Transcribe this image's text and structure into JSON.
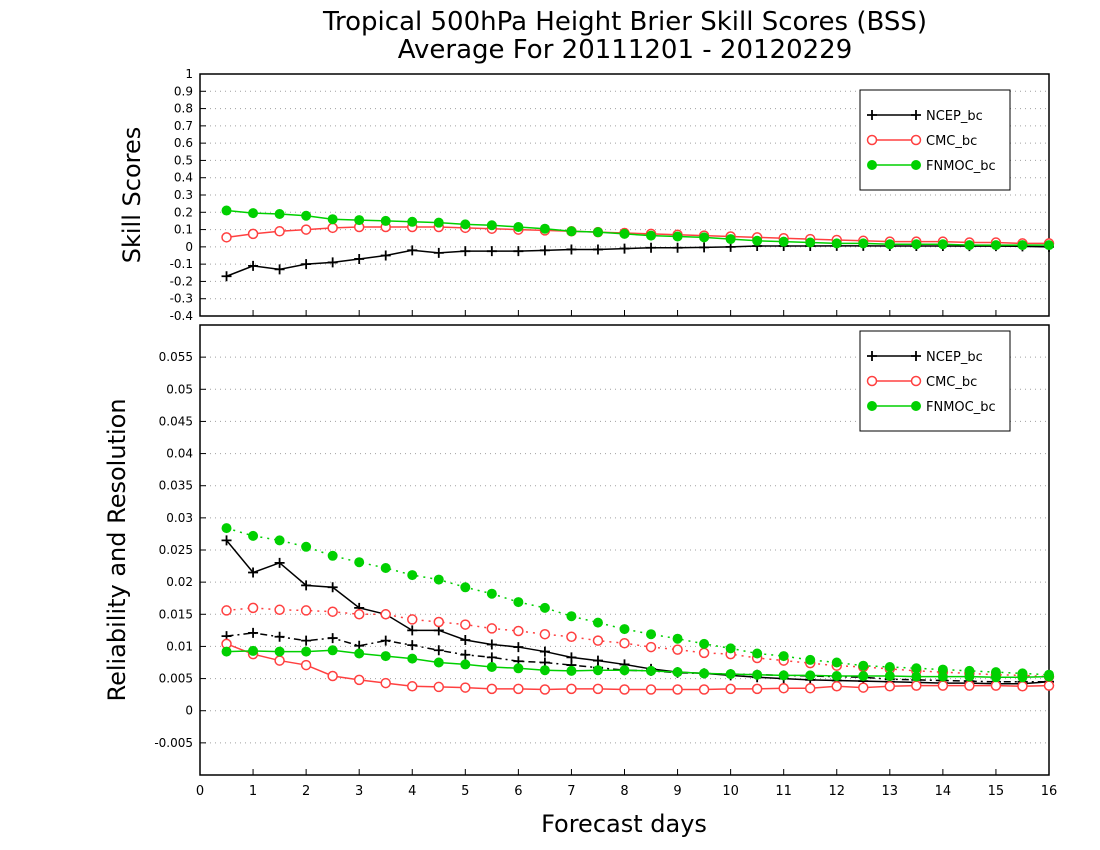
{
  "title_line1": "Tropical 500hPa Height Brier Skill Scores (BSS)",
  "title_line2": "Average For 20111201 - 20120229",
  "xlabel": "Forecast days",
  "colors": {
    "ncep": "#000000",
    "cmc": "#ff4040",
    "fnmoc": "#00d000",
    "grid": "#a0a0a0"
  },
  "chart_data": [
    {
      "type": "line",
      "ylabel": "Skill Scores",
      "xlim": [
        0,
        16
      ],
      "ylim": [
        -0.4,
        1
      ],
      "x_ticks": [
        0,
        1,
        2,
        3,
        4,
        5,
        6,
        7,
        8,
        9,
        10,
        11,
        12,
        13,
        14,
        15,
        16
      ],
      "x_tick_labels": [
        "0",
        "1",
        "2",
        "3",
        "4",
        "5",
        "6",
        "7",
        "8",
        "9",
        "10",
        "11",
        "12",
        "13",
        "14",
        "15",
        "16"
      ],
      "y_ticks": [
        -0.4,
        -0.3,
        -0.2,
        -0.1,
        0,
        0.1,
        0.2,
        0.3,
        0.4,
        0.5,
        0.6,
        0.7,
        0.8,
        0.9,
        1
      ],
      "y_tick_labels": [
        "-0.4",
        "-0.3",
        "-0.2",
        "-0.1",
        "0",
        "0.1",
        "0.2",
        "0.3",
        "0.4",
        "0.5",
        "0.6",
        "0.7",
        "0.8",
        "0.9",
        "1"
      ],
      "grid": true,
      "legend_position": "top-right",
      "x": [
        0.5,
        1,
        1.5,
        2,
        2.5,
        3,
        3.5,
        4,
        4.5,
        5,
        5.5,
        6,
        6.5,
        7,
        7.5,
        8,
        8.5,
        9,
        9.5,
        10,
        10.5,
        11,
        11.5,
        12,
        12.5,
        13,
        13.5,
        14,
        14.5,
        15,
        15.5,
        16
      ],
      "series": [
        {
          "name": "NCEP_bc",
          "key": "ncep",
          "marker": "plus",
          "dash": "solid",
          "values": [
            -0.17,
            -0.11,
            -0.13,
            -0.1,
            -0.09,
            -0.07,
            -0.05,
            -0.02,
            -0.035,
            -0.025,
            -0.025,
            -0.025,
            -0.02,
            -0.015,
            -0.015,
            -0.01,
            -0.005,
            -0.005,
            -0.003,
            0.0,
            0.005,
            0.005,
            0.005,
            0.006,
            0.006,
            0.005,
            0.005,
            0.005,
            0.004,
            0.004,
            0.003,
            0.0
          ]
        },
        {
          "name": "CMC_bc",
          "key": "cmc",
          "marker": "open-circle",
          "dash": "solid",
          "values": [
            0.055,
            0.075,
            0.09,
            0.1,
            0.11,
            0.115,
            0.115,
            0.115,
            0.115,
            0.11,
            0.105,
            0.1,
            0.095,
            0.09,
            0.085,
            0.08,
            0.075,
            0.07,
            0.065,
            0.06,
            0.055,
            0.05,
            0.045,
            0.04,
            0.035,
            0.03,
            0.03,
            0.03,
            0.025,
            0.025,
            0.02,
            0.02
          ]
        },
        {
          "name": "FNMOC_bc",
          "key": "fnmoc",
          "marker": "filled-circle",
          "dash": "solid",
          "values": [
            0.21,
            0.195,
            0.19,
            0.18,
            0.16,
            0.155,
            0.15,
            0.145,
            0.14,
            0.13,
            0.125,
            0.115,
            0.105,
            0.09,
            0.085,
            0.075,
            0.065,
            0.06,
            0.055,
            0.045,
            0.035,
            0.03,
            0.025,
            0.02,
            0.02,
            0.015,
            0.015,
            0.015,
            0.01,
            0.01,
            0.01,
            0.01
          ]
        }
      ]
    },
    {
      "type": "line",
      "ylabel": "Reliability and Resolution",
      "xlim": [
        0,
        16
      ],
      "ylim": [
        -0.01,
        0.06
      ],
      "x_ticks": [
        0,
        1,
        2,
        3,
        4,
        5,
        6,
        7,
        8,
        9,
        10,
        11,
        12,
        13,
        14,
        15,
        16
      ],
      "x_tick_labels": [
        "0",
        "1",
        "2",
        "3",
        "4",
        "5",
        "6",
        "7",
        "8",
        "9",
        "10",
        "11",
        "12",
        "13",
        "14",
        "15",
        "16"
      ],
      "y_ticks": [
        -0.005,
        0,
        0.005,
        0.01,
        0.015,
        0.02,
        0.025,
        0.03,
        0.035,
        0.04,
        0.045,
        0.05,
        0.055
      ],
      "y_tick_labels": [
        "-0.005",
        "0",
        "0.005",
        "0.01",
        "0.015",
        "0.02",
        "0.025",
        "0.03",
        "0.035",
        "0.04",
        "0.045",
        "0.05",
        "0.055"
      ],
      "grid": true,
      "legend_position": "top-right",
      "x": [
        0.5,
        1,
        1.5,
        2,
        2.5,
        3,
        3.5,
        4,
        4.5,
        5,
        5.5,
        6,
        6.5,
        7,
        7.5,
        8,
        8.5,
        9,
        9.5,
        10,
        10.5,
        11,
        11.5,
        12,
        12.5,
        13,
        13.5,
        14,
        14.5,
        15,
        15.5,
        16
      ],
      "series": [
        {
          "name": "NCEP_bc",
          "key": "ncep",
          "marker": "plus",
          "dash": "solid",
          "legend": true,
          "values": [
            0.0265,
            0.0215,
            0.023,
            0.0195,
            0.0192,
            0.016,
            0.015,
            0.0125,
            0.0125,
            0.011,
            0.0103,
            0.0099,
            0.0092,
            0.0083,
            0.0078,
            0.0072,
            0.0065,
            0.006,
            0.0058,
            0.0055,
            0.0052,
            0.005,
            0.0048,
            0.0047,
            0.0046,
            0.0045,
            0.0044,
            0.0043,
            0.0043,
            0.0042,
            0.0042,
            0.0045
          ]
        },
        {
          "name": "NCEP_bc",
          "key": "ncep",
          "marker": "plus",
          "dash": "dashdot",
          "legend": false,
          "values": [
            0.0116,
            0.0121,
            0.0115,
            0.0109,
            0.0113,
            0.0101,
            0.0109,
            0.0102,
            0.0094,
            0.0087,
            0.0083,
            0.0077,
            0.0075,
            0.0071,
            0.0067,
            0.0063,
            0.0062,
            0.0059,
            0.0058,
            0.0057,
            0.0056,
            0.0055,
            0.0054,
            0.0053,
            0.0052,
            0.0049,
            0.0048,
            0.0047,
            0.0046,
            0.0045,
            0.0045,
            0.0045
          ]
        },
        {
          "name": "CMC_bc",
          "key": "cmc",
          "marker": "open-circle",
          "dash": "solid",
          "legend": true,
          "values": [
            0.0104,
            0.0088,
            0.0078,
            0.0071,
            0.0054,
            0.0048,
            0.0043,
            0.0038,
            0.0037,
            0.0036,
            0.0034,
            0.0034,
            0.0033,
            0.0034,
            0.0034,
            0.0033,
            0.0033,
            0.0033,
            0.0033,
            0.0034,
            0.0034,
            0.0035,
            0.0035,
            0.0038,
            0.0036,
            0.0038,
            0.0039,
            0.0039,
            0.0039,
            0.0039,
            0.0038,
            0.0039
          ]
        },
        {
          "name": "CMC_bc",
          "key": "cmc",
          "marker": "open-circle",
          "dash": "dotted",
          "legend": false,
          "values": [
            0.0156,
            0.016,
            0.0157,
            0.0156,
            0.0154,
            0.015,
            0.015,
            0.0142,
            0.0138,
            0.0134,
            0.0128,
            0.0124,
            0.0119,
            0.0115,
            0.0109,
            0.0105,
            0.0099,
            0.0095,
            0.009,
            0.0088,
            0.0082,
            0.0078,
            0.0074,
            0.007,
            0.0068,
            0.0065,
            0.0062,
            0.006,
            0.0058,
            0.0056,
            0.0055,
            0.0053
          ]
        },
        {
          "name": "FNMOC_bc",
          "key": "fnmoc",
          "marker": "filled-circle",
          "dash": "solid",
          "legend": true,
          "values": [
            0.0092,
            0.0093,
            0.0092,
            0.0092,
            0.0094,
            0.0089,
            0.0085,
            0.0081,
            0.0075,
            0.0072,
            0.0068,
            0.0066,
            0.0063,
            0.0062,
            0.0063,
            0.0063,
            0.0062,
            0.006,
            0.0058,
            0.0057,
            0.0056,
            0.0055,
            0.0055,
            0.0054,
            0.0054,
            0.0054,
            0.0053,
            0.0053,
            0.0053,
            0.0052,
            0.0052,
            0.0053
          ]
        },
        {
          "name": "FNMOC_bc",
          "key": "fnmoc",
          "marker": "filled-circle",
          "dash": "dotted",
          "legend": false,
          "values": [
            0.0284,
            0.0272,
            0.0265,
            0.0255,
            0.0241,
            0.0231,
            0.0222,
            0.0211,
            0.0204,
            0.0192,
            0.0182,
            0.0169,
            0.016,
            0.0147,
            0.0137,
            0.0127,
            0.0119,
            0.0112,
            0.0104,
            0.0097,
            0.0089,
            0.0085,
            0.0079,
            0.0075,
            0.007,
            0.0068,
            0.0066,
            0.0064,
            0.0062,
            0.006,
            0.0058,
            0.0056
          ]
        }
      ]
    }
  ]
}
